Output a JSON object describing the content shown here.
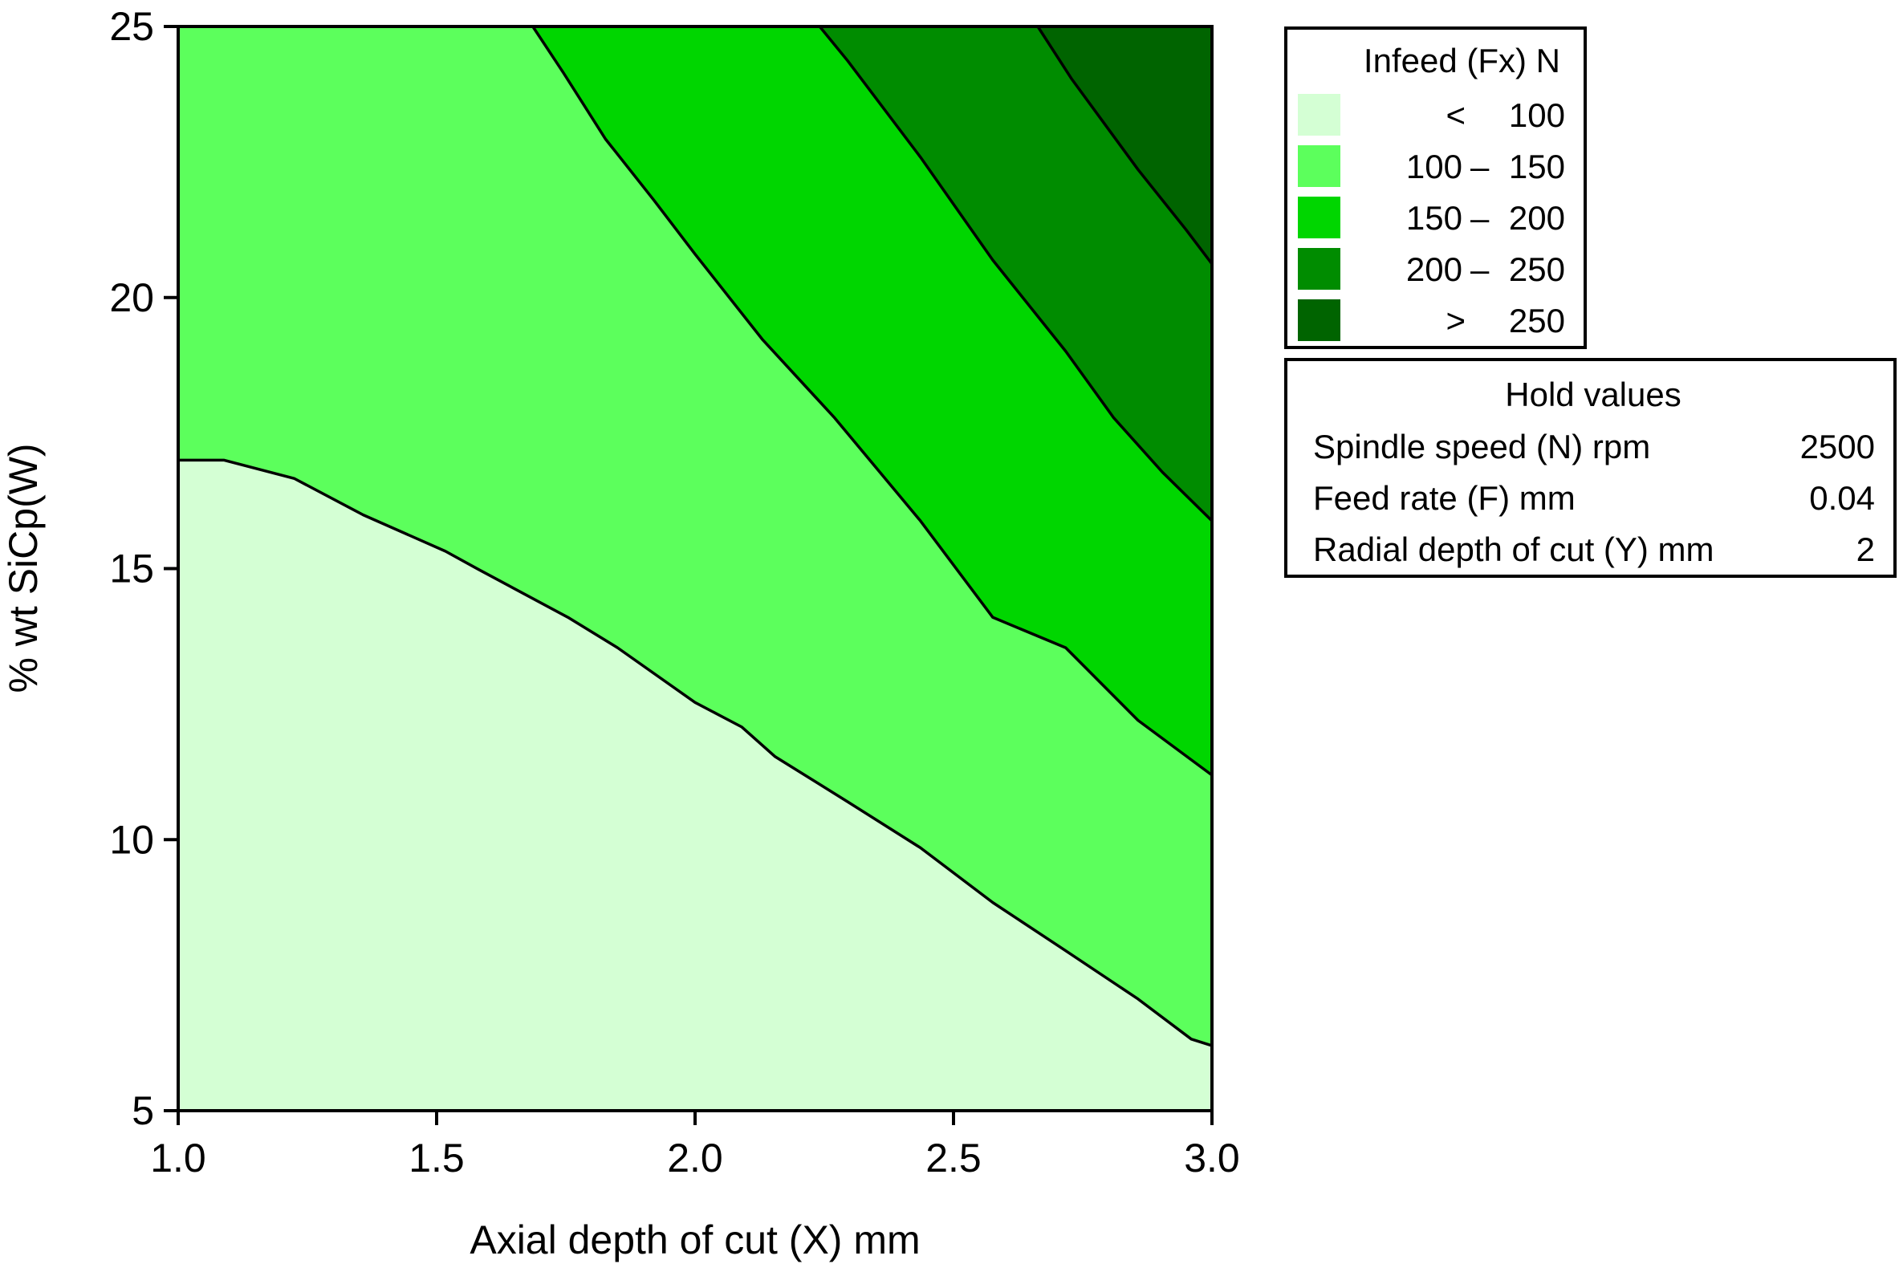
{
  "chart_data": {
    "type": "contour",
    "xlabel": "Axial depth of cut (X) mm",
    "ylabel": "% wt SiCp(W)",
    "xlim": [
      1.0,
      3.0
    ],
    "ylim": [
      5,
      25
    ],
    "xticks": [
      "1.0",
      "1.5",
      "2.0",
      "2.5",
      "3.0"
    ],
    "xtick_values": [
      1.0,
      1.5,
      2.0,
      2.5,
      3.0
    ],
    "yticks": [
      "5",
      "10",
      "15",
      "20",
      "25"
    ],
    "ytick_values": [
      5,
      10,
      15,
      20,
      25
    ],
    "legend": {
      "title": "Infeed (Fx) N",
      "placement": "right",
      "entries": [
        {
          "low": "",
          "sep": "<",
          "high": "100",
          "color": "#d4ffd4"
        },
        {
          "low": "100",
          "sep": "–",
          "high": "150",
          "color": "#5cff5c"
        },
        {
          "low": "150",
          "sep": "–",
          "high": "200",
          "color": "#00d600"
        },
        {
          "low": "200",
          "sep": "–",
          "high": "250",
          "color": "#008c00"
        },
        {
          "low": "",
          "sep": ">",
          "high": "250",
          "color": "#006400"
        }
      ]
    },
    "contours": [
      {
        "level": 100,
        "points": [
          [
            1.0,
            17.0
          ],
          [
            1.089,
            17.0
          ],
          [
            1.225,
            16.66
          ],
          [
            1.358,
            15.99
          ],
          [
            1.517,
            15.32
          ],
          [
            1.58,
            14.99
          ],
          [
            1.756,
            14.09
          ],
          [
            1.85,
            13.54
          ],
          [
            2.0,
            12.53
          ],
          [
            2.09,
            12.08
          ],
          [
            2.155,
            11.53
          ],
          [
            2.295,
            10.7
          ],
          [
            2.436,
            9.85
          ],
          [
            2.576,
            8.84
          ],
          [
            2.717,
            7.95
          ],
          [
            2.857,
            7.06
          ],
          [
            2.96,
            6.32
          ],
          [
            3.0,
            6.2
          ]
        ]
      },
      {
        "level": 150,
        "points": [
          [
            1.686,
            25
          ],
          [
            1.745,
            24.15
          ],
          [
            1.827,
            22.92
          ],
          [
            1.92,
            21.8
          ],
          [
            2.0,
            20.8
          ],
          [
            2.13,
            19.23
          ],
          [
            2.27,
            17.78
          ],
          [
            2.436,
            15.88
          ],
          [
            2.576,
            14.1
          ],
          [
            2.717,
            13.54
          ],
          [
            2.857,
            12.2
          ],
          [
            3.0,
            11.19
          ]
        ]
      },
      {
        "level": 200,
        "points": [
          [
            2.241,
            25
          ],
          [
            2.295,
            24.37
          ],
          [
            2.436,
            22.59
          ],
          [
            2.576,
            20.69
          ],
          [
            2.717,
            19.01
          ],
          [
            2.81,
            17.78
          ],
          [
            2.904,
            16.78
          ],
          [
            3.0,
            15.88
          ]
        ]
      },
      {
        "level": 250,
        "points": [
          [
            2.663,
            25
          ],
          [
            2.728,
            24.04
          ],
          [
            2.857,
            22.36
          ],
          [
            2.95,
            21.25
          ],
          [
            3.0,
            20.62
          ]
        ]
      }
    ],
    "grid": false
  },
  "hold_values": {
    "title": "Hold values",
    "rows": [
      {
        "label": "Spindle speed (N) rpm",
        "value": "2500"
      },
      {
        "label": "Feed rate (F) mm",
        "value": "0.04"
      },
      {
        "label": "Radial depth of cut (Y) mm",
        "value": "2"
      }
    ]
  }
}
